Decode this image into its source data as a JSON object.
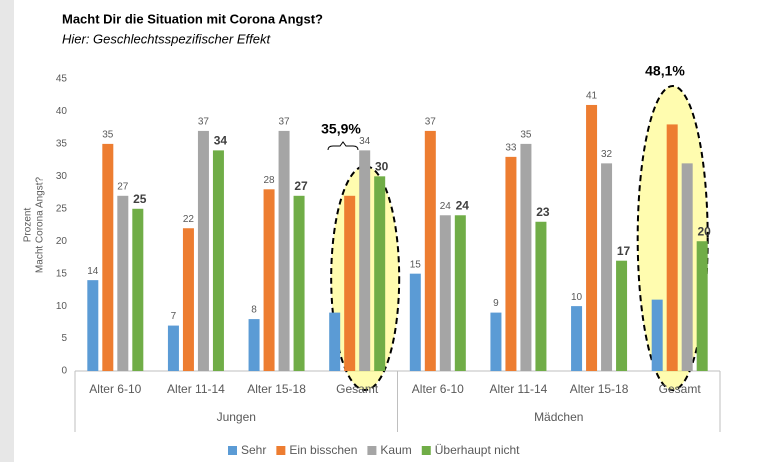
{
  "chart_data": {
    "type": "bar",
    "title": "Macht Dir die Situation mit Corona Angst?",
    "subtitle": "Hier: Geschlechtsspezifischer Effekt",
    "y_label": [
      "Prozent",
      "Macht Corona Angst?"
    ],
    "categories": [
      "Alter 6-10",
      "Alter 11-14",
      "Alter 15-18",
      "Gesamt",
      "Alter 6-10",
      "Alter 11-14",
      "Alter 15-18",
      "Gesamt"
    ],
    "groups": [
      "Jungen",
      "Mädchen"
    ],
    "series": [
      {
        "name": "Sehr",
        "color": "#5b9bd5",
        "values": [
          14,
          7,
          8,
          9,
          15,
          9,
          10,
          11
        ],
        "value_labels": [
          "14",
          "7",
          "8",
          null,
          "15",
          "9",
          "10",
          null
        ]
      },
      {
        "name": "Ein bisschen",
        "color": "#ed7d31",
        "values": [
          35,
          22,
          28,
          27,
          37,
          33,
          41,
          38
        ],
        "value_labels": [
          "35",
          "22",
          "28",
          null,
          "37",
          "33",
          "41",
          null
        ]
      },
      {
        "name": "Kaum",
        "color": "#a5a5a5",
        "values": [
          27,
          37,
          37,
          34,
          24,
          35,
          32,
          32
        ],
        "value_labels": [
          "27",
          "37",
          "37",
          "34",
          "24",
          "35",
          "32",
          null
        ]
      },
      {
        "name": "Überhaupt nicht",
        "color": "#70ad47",
        "values": [
          25,
          34,
          27,
          30,
          24,
          23,
          17,
          20
        ],
        "value_labels": [
          "25",
          "34",
          "27",
          "30",
          "24",
          "23",
          "17",
          "20"
        ],
        "bold_labels": true
      }
    ],
    "annotations": [
      "35,9%",
      "48,1%"
    ],
    "ylim": [
      0,
      45
    ],
    "yticks": [
      0,
      5,
      10,
      15,
      20,
      25,
      30,
      35,
      40,
      45
    ],
    "grid": false,
    "legend": "bottom"
  }
}
